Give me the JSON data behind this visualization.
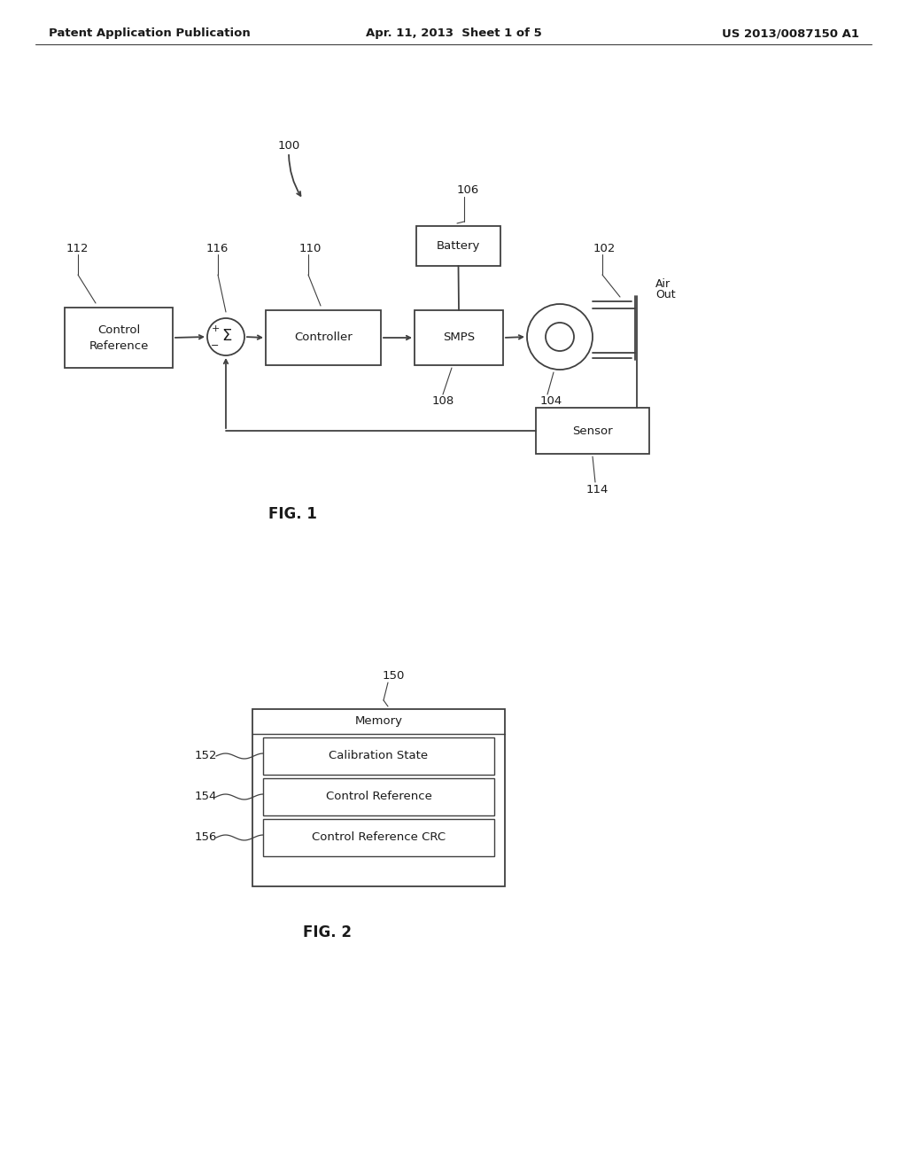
{
  "bg_color": "#ffffff",
  "header_left": "Patent Application Publication",
  "header_center": "Apr. 11, 2013  Sheet 1 of 5",
  "header_right": "US 2013/0087150 A1",
  "fig1_label": "FIG. 1",
  "fig2_label": "FIG. 2",
  "line_color": "#404040",
  "text_color": "#1a1a1a"
}
